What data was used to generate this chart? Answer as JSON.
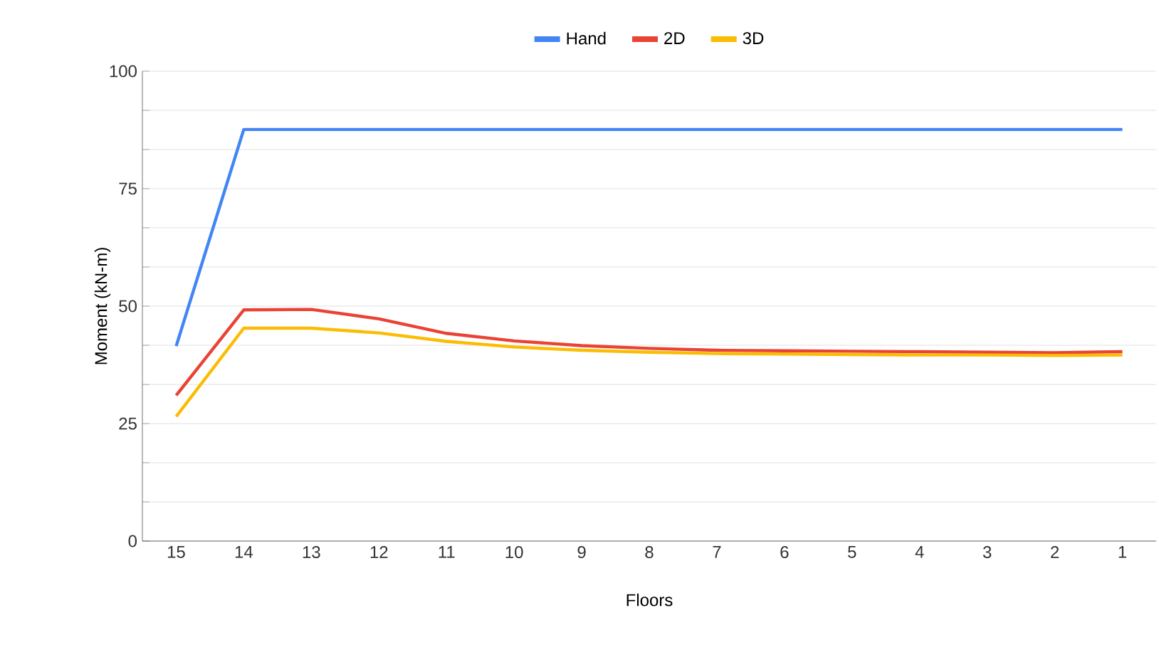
{
  "chart_data": {
    "type": "line",
    "xlabel": "Floors",
    "ylabel": "Moment (kN-m)",
    "categories": [
      "15",
      "14",
      "13",
      "12",
      "11",
      "10",
      "9",
      "8",
      "7",
      "6",
      "5",
      "4",
      "3",
      "2",
      "1"
    ],
    "series": [
      {
        "name": "Hand",
        "color": "#4285f4",
        "values": [
          41.5,
          87.6,
          87.6,
          87.6,
          87.6,
          87.6,
          87.6,
          87.6,
          87.6,
          87.6,
          87.6,
          87.6,
          87.6,
          87.6,
          87.6
        ]
      },
      {
        "name": "2D",
        "color": "#ea4335",
        "values": [
          31,
          49.2,
          49.3,
          47.3,
          44.2,
          42.6,
          41.6,
          41,
          40.6,
          40.5,
          40.4,
          40.3,
          40.2,
          40.1,
          40.3
        ]
      },
      {
        "name": "3D",
        "color": "#fbbc04",
        "values": [
          26.5,
          45.3,
          45.3,
          44.3,
          42.5,
          41.3,
          40.6,
          40.2,
          39.9,
          39.8,
          39.7,
          39.6,
          39.6,
          39.5,
          39.6
        ]
      }
    ],
    "ylim": [
      0,
      100
    ],
    "yticks": [
      0,
      {
        "value": 8.33,
        "label": null
      },
      {
        "value": 16.67,
        "label": null
      },
      25,
      {
        "value": 33.33,
        "label": null
      },
      {
        "value": 41.67,
        "label": null
      },
      50,
      {
        "value": 58.33,
        "label": null
      },
      {
        "value": 66.67,
        "label": null
      },
      75,
      {
        "value": 83.33,
        "label": null
      },
      {
        "value": 91.67,
        "label": null
      },
      100
    ],
    "grid": "y",
    "legend": "top",
    "marker": "none",
    "line_style": "solid"
  }
}
